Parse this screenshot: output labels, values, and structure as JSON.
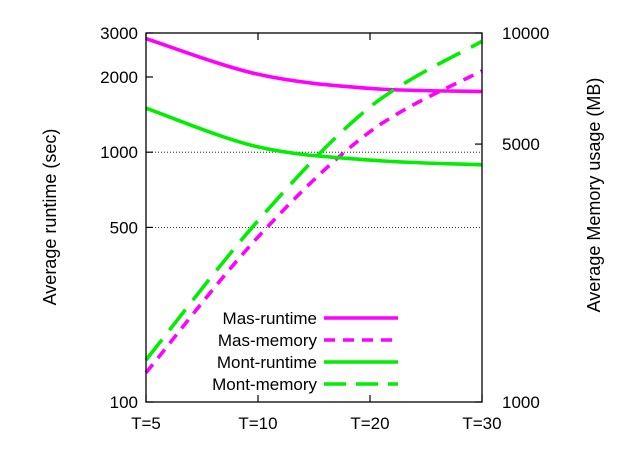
{
  "chart_data": {
    "type": "line",
    "title": "",
    "categories": [
      "T=5",
      "T=10",
      "T=20",
      "T=30"
    ],
    "ylabel": "Average runtime (sec)",
    "y2label": "Average Memory usage (MB)",
    "y_scale": "log",
    "y2_scale": "log",
    "ylim": [
      100,
      3000
    ],
    "y2lim": [
      1000,
      10000
    ],
    "yticks": [
      100,
      500,
      1000,
      2000,
      3000
    ],
    "y2ticks": [
      1000,
      5000,
      10000
    ],
    "grid_y": [
      500,
      1000
    ],
    "legend_position": "bottom-right",
    "series": [
      {
        "name": "Mas-runtime",
        "axis": "left",
        "style": "solid",
        "color": "#ff00ff",
        "values": [
          2850,
          2050,
          1800,
          1750
        ]
      },
      {
        "name": "Mas-memory",
        "axis": "right",
        "style": "dashed",
        "color": "#ff00ff",
        "values": [
          1200,
          2800,
          5400,
          7900
        ]
      },
      {
        "name": "Mont-runtime",
        "axis": "left",
        "style": "solid",
        "color": "#00ee00",
        "values": [
          1500,
          1050,
          930,
          890
        ]
      },
      {
        "name": "Mont-memory",
        "axis": "right",
        "style": "dashed",
        "color": "#00ee00",
        "values": [
          1300,
          3100,
          6300,
          9500
        ]
      }
    ]
  }
}
